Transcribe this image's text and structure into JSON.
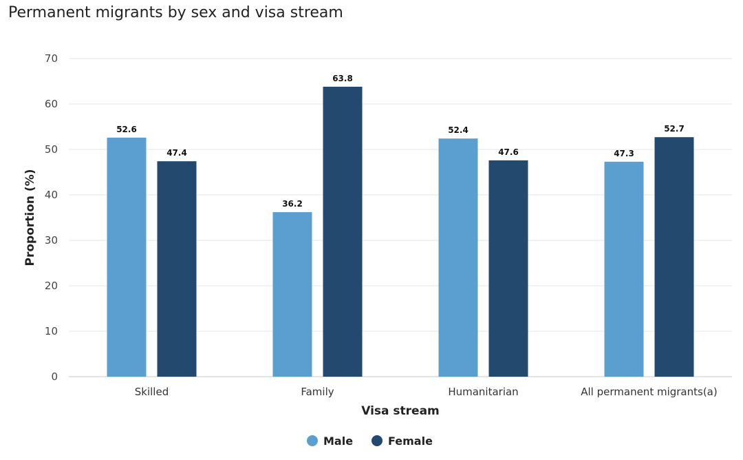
{
  "chart_data": {
    "type": "bar",
    "title": "Permanent migrants by sex and visa stream",
    "xlabel": "Visa stream",
    "ylabel": "Proportion (%)",
    "ylim": [
      0,
      70
    ],
    "yticks": [
      0,
      10,
      20,
      30,
      40,
      50,
      60,
      70
    ],
    "grid": true,
    "legend_position": "bottom-center",
    "categories": [
      "Skilled",
      "Family",
      "Humanitarian",
      "All permanent migrants(a)"
    ],
    "series": [
      {
        "name": "Male",
        "color": "#5b9fd1",
        "values": [
          52.6,
          36.2,
          52.4,
          47.3
        ]
      },
      {
        "name": "Female",
        "color": "#234a6e",
        "values": [
          47.4,
          63.8,
          47.6,
          52.7
        ]
      }
    ]
  }
}
